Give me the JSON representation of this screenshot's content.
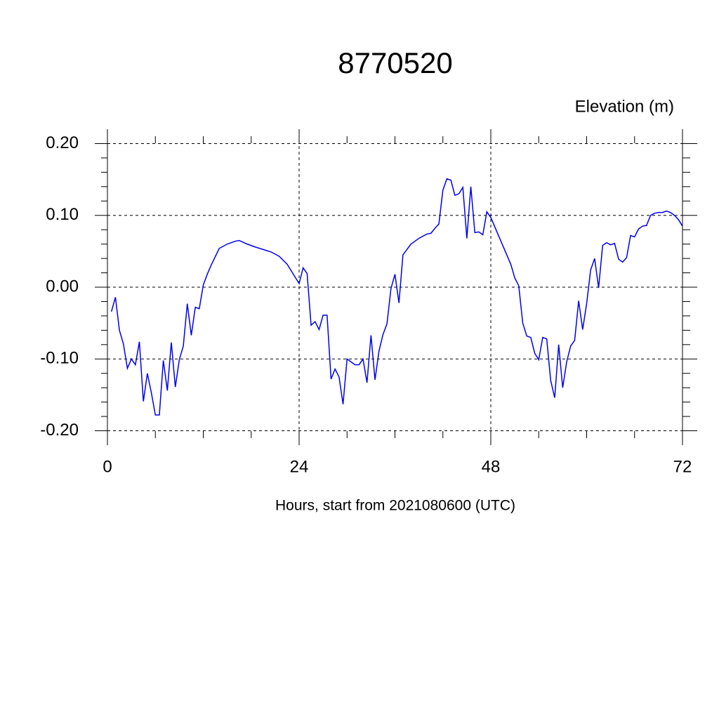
{
  "chart_data": {
    "type": "line",
    "title": "8770520",
    "ylabel": "Elevation (m)",
    "xlabel": "Hours, start from 2021080600 (UTC)",
    "xlim": [
      0,
      72
    ],
    "xticks": [
      0,
      24,
      48,
      72
    ],
    "ylim": [
      -0.22,
      0.22
    ],
    "yticks": [
      {
        "value": -0.2,
        "label": "-0.20"
      },
      {
        "value": -0.1,
        "label": "-0.10"
      },
      {
        "value": 0,
        "label": "0.00"
      },
      {
        "value": 0.1,
        "label": "0.10"
      },
      {
        "value": 0.2,
        "label": "0.20"
      }
    ],
    "grid": true,
    "series": [
      {
        "color": "#0000ee",
        "x": [
          0.5,
          1,
          1.5,
          2,
          2.5,
          3,
          3.5,
          4,
          4.5,
          5,
          5.5,
          6,
          6.5,
          7,
          7.5,
          8,
          8.5,
          9,
          9.5,
          10,
          10.5,
          11,
          11.5,
          12,
          12.5,
          13,
          14,
          15,
          16,
          16.5,
          17.5,
          18.5,
          20.5,
          21.5,
          22.5,
          24,
          24.5,
          25,
          25.5,
          26,
          26.5,
          27,
          27.5,
          28,
          28.5,
          29,
          29.5,
          30,
          30.5,
          31,
          31.5,
          32,
          32.5,
          33,
          33.5,
          34,
          34.5,
          35,
          35.5,
          36,
          36.5,
          37,
          38,
          39,
          40,
          40.5,
          41,
          41.5,
          42,
          42.5,
          43,
          43.5,
          44,
          44.5,
          45,
          45.5,
          46,
          46.5,
          47,
          47.5,
          48,
          50.5,
          51,
          51.5,
          52,
          52.5,
          53,
          53.5,
          54,
          54.5,
          55,
          55.5,
          56,
          56.5,
          57,
          57.5,
          58,
          58.5,
          59,
          59.5,
          60,
          60.5,
          61,
          61.5,
          62,
          62.5,
          63,
          63.5,
          64,
          64.5,
          65,
          65.5,
          66,
          66.5,
          67,
          67.5,
          68,
          68.5,
          69,
          69.5,
          70,
          70.5,
          71,
          71.5,
          72
        ],
        "values": [
          -0.034,
          -0.014,
          -0.06,
          -0.079,
          -0.113,
          -0.1,
          -0.108,
          -0.076,
          -0.159,
          -0.12,
          -0.147,
          -0.178,
          -0.178,
          -0.102,
          -0.144,
          -0.077,
          -0.139,
          -0.101,
          -0.082,
          -0.023,
          -0.067,
          -0.028,
          -0.03,
          0.003,
          0.018,
          0.031,
          0.054,
          0.06,
          0.064,
          0.065,
          0.06,
          0.056,
          0.049,
          0.043,
          0.032,
          0.005,
          0.027,
          0.019,
          -0.053,
          -0.048,
          -0.059,
          -0.039,
          -0.039,
          -0.128,
          -0.114,
          -0.125,
          -0.163,
          -0.1,
          -0.104,
          -0.108,
          -0.108,
          -0.1,
          -0.133,
          -0.067,
          -0.129,
          -0.089,
          -0.066,
          -0.051,
          -0.002,
          0.018,
          -0.022,
          0.045,
          0.06,
          0.068,
          0.074,
          0.075,
          0.082,
          0.088,
          0.135,
          0.151,
          0.149,
          0.128,
          0.13,
          0.139,
          0.068,
          0.14,
          0.076,
          0.077,
          0.073,
          0.105,
          0.097,
          0.032,
          0.013,
          0.002,
          -0.05,
          -0.068,
          -0.07,
          -0.092,
          -0.101,
          -0.07,
          -0.072,
          -0.13,
          -0.154,
          -0.08,
          -0.14,
          -0.104,
          -0.082,
          -0.074,
          -0.019,
          -0.059,
          -0.023,
          0.024,
          0.04,
          -0.001,
          0.058,
          0.062,
          0.059,
          0.061,
          0.039,
          0.035,
          0.041,
          0.072,
          0.07,
          0.081,
          0.085,
          0.086,
          0.1,
          0.103,
          0.104,
          0.104,
          0.106,
          0.104,
          0.1,
          0.094,
          0.085
        ]
      }
    ]
  }
}
